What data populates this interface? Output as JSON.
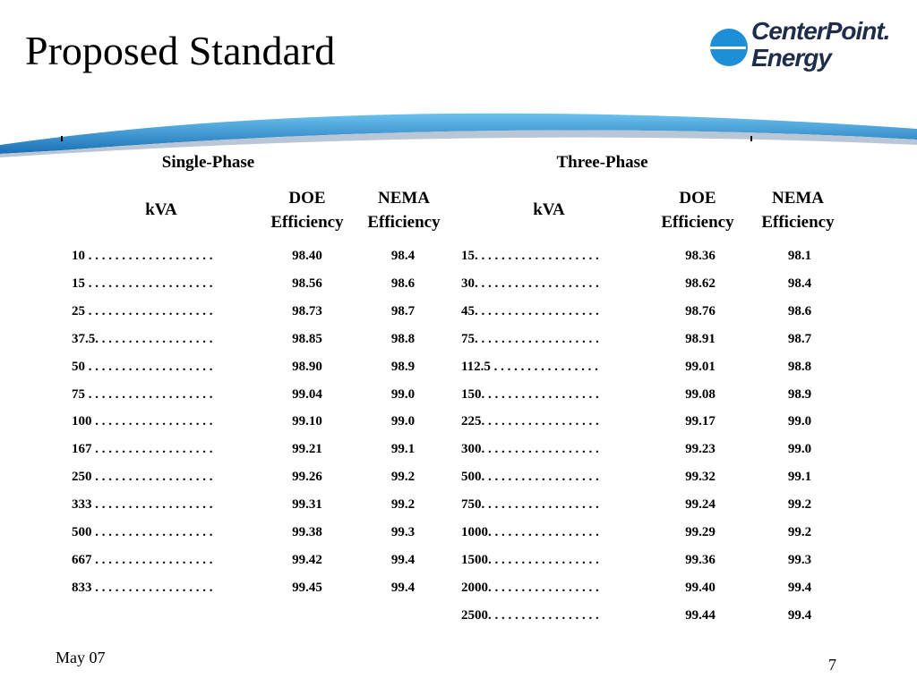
{
  "slide": {
    "title": "Proposed Standard",
    "date": "May 07",
    "page_number": "7"
  },
  "logo": {
    "line1": "CenterPoint.",
    "line2": "Energy"
  },
  "single_phase": {
    "heading": "Single-Phase",
    "col_kva": "kVA",
    "col_doe": "DOE Efficiency",
    "col_nema": "NEMA Efficiency",
    "rows": [
      {
        "kva": "10 . . . . . . . . . . . . . . . . . . .",
        "doe": "98.40",
        "nema": "98.4"
      },
      {
        "kva": "15 . . . . . . . . . . . . . . . . . . .",
        "doe": "98.56",
        "nema": "98.6"
      },
      {
        "kva": "25 . . . . . . . . . . . . . . . . . . .",
        "doe": "98.73",
        "nema": "98.7"
      },
      {
        "kva": "37.5. . . . . . . . . . . . . . . . . .",
        "doe": "98.85",
        "nema": "98.8"
      },
      {
        "kva": "50 . . . . . . . . . . . . . . . . . . .",
        "doe": "98.90",
        "nema": "98.9"
      },
      {
        "kva": "75 . . . . . . . . . . . . . . . . . . .",
        "doe": "99.04",
        "nema": "99.0"
      },
      {
        "kva": "100 . . . . . . . . . . . . . . . . . .",
        "doe": "99.10",
        "nema": "99.0"
      },
      {
        "kva": "167 . . . . . . . . . . . . . . . . . .",
        "doe": "99.21",
        "nema": "99.1"
      },
      {
        "kva": "250 . . . . . . . . . . . . . . . . . .",
        "doe": "99.26",
        "nema": "99.2"
      },
      {
        "kva": "333 . . . . . . . . . . . . . . . . . .",
        "doe": "99.31",
        "nema": "99.2"
      },
      {
        "kva": "500 . . . . . . . . . . . . . . . . . .",
        "doe": "99.38",
        "nema": "99.3"
      },
      {
        "kva": "667 . . . . . . . . . . . . . . . . . .",
        "doe": "99.42",
        "nema": "99.4"
      },
      {
        "kva": "833 . . . . . . . . . . . . . . . . . .",
        "doe": "99.45",
        "nema": "99.4"
      }
    ]
  },
  "three_phase": {
    "heading": "Three-Phase",
    "col_kva": "kVA",
    "col_doe": "DOE Efficiency",
    "col_nema": "NEMA Efficiency",
    "rows": [
      {
        "kva": "15. . . . . . . . . . . . . . . . . . .",
        "doe": "98.36",
        "nema": "98.1"
      },
      {
        "kva": "30. . . . . . . . . . . . . . . . . . .",
        "doe": "98.62",
        "nema": "98.4"
      },
      {
        "kva": "45. . . . . . . . . . . . . . . . . . .",
        "doe": "98.76",
        "nema": "98.6"
      },
      {
        "kva": "75. . . . . . . . . . . . . . . . . . .",
        "doe": "98.91",
        "nema": "98.7"
      },
      {
        "kva": "112.5 . . . . . . . . . . . . . . . .",
        "doe": "99.01",
        "nema": "98.8"
      },
      {
        "kva": "150. . . . . . . . . . . . . . . . . .",
        "doe": "99.08",
        "nema": "98.9"
      },
      {
        "kva": "225. . . . . . . . . . . . . . . . . .",
        "doe": "99.17",
        "nema": "99.0"
      },
      {
        "kva": "300. . . . . . . . . . . . . . . . . .",
        "doe": "99.23",
        "nema": "99.0"
      },
      {
        "kva": "500. . . . . . . . . . . . . . . . . .",
        "doe": "99.32",
        "nema": "99.1"
      },
      {
        "kva": "750. . . . . . . . . . . . . . . . . .",
        "doe": "99.24",
        "nema": "99.2"
      },
      {
        "kva": "1000. . . . . . . . . . . . . . . . .",
        "doe": "99.29",
        "nema": "99.2"
      },
      {
        "kva": "1500. . . . . . . . . . . . . . . . .",
        "doe": "99.36",
        "nema": "99.3"
      },
      {
        "kva": "2000. . . . . . . . . . . . . . . . .",
        "doe": "99.40",
        "nema": "99.4"
      },
      {
        "kva": "2500. . . . . . . . . . . . . . . . .",
        "doe": "99.44",
        "nema": "99.4"
      }
    ]
  }
}
